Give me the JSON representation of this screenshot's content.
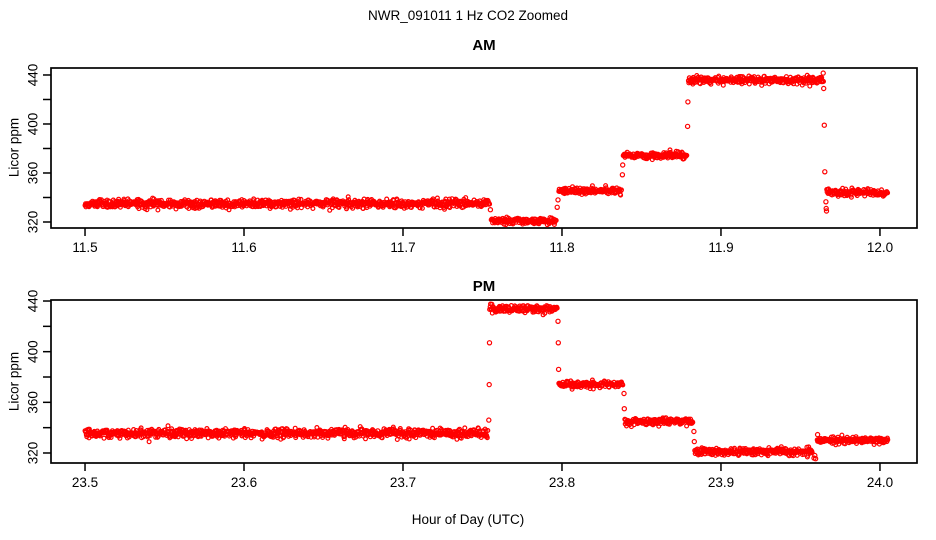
{
  "title": "NWR_091011  1 Hz CO2 Zoomed",
  "xlabel": "Hour of Day (UTC)",
  "colors": {
    "points": "#FF0000",
    "axis": "#000000",
    "background": "#FFFFFF"
  },
  "chart_data": [
    {
      "panel": "AM",
      "type": "scatter",
      "title": "AM",
      "ylabel": "Licor ppm",
      "marker": "open-circle",
      "sample_rate_hz": 1,
      "xlim": [
        11.4786,
        12.0233
      ],
      "ylim": [
        315.1,
        445.7
      ],
      "x_ticks": [
        {
          "v": 11.5,
          "l": "11.5"
        },
        {
          "v": 11.6,
          "l": "11.6"
        },
        {
          "v": 11.7,
          "l": "11.7"
        },
        {
          "v": 11.8,
          "l": "11.8"
        },
        {
          "v": 11.9,
          "l": "11.9"
        },
        {
          "v": 12.0,
          "l": "12.0"
        }
      ],
      "y_ticks": [
        {
          "v": 320,
          "l": "320"
        },
        {
          "v": 340,
          "l": ""
        },
        {
          "v": 360,
          "l": "360"
        },
        {
          "v": 380,
          "l": ""
        },
        {
          "v": 400,
          "l": "400"
        },
        {
          "v": 420,
          "l": ""
        },
        {
          "v": 440,
          "l": "440"
        }
      ],
      "segments": [
        {
          "from": 11.5,
          "to": 11.7545,
          "value": 335.0,
          "sd": 1.8
        },
        {
          "from": 11.7555,
          "to": 11.7965,
          "value": 320.8,
          "sd": 1.4
        },
        {
          "from": 11.798,
          "to": 11.8375,
          "value": 345.5,
          "sd": 1.4
        },
        {
          "from": 11.8385,
          "to": 11.8785,
          "value": 374.5,
          "sd": 1.4
        },
        {
          "from": 11.8795,
          "to": 11.9645,
          "value": 435.8,
          "sd": 1.5
        },
        {
          "from": 11.9665,
          "to": 12.005,
          "value": 344.0,
          "sd": 1.4
        }
      ],
      "transitions": [
        [
          11.755,
          330
        ],
        [
          11.797,
          332
        ],
        [
          11.7975,
          338
        ],
        [
          11.838,
          358.5
        ],
        [
          11.8382,
          366.5
        ],
        [
          11.879,
          398
        ],
        [
          11.8792,
          418
        ],
        [
          11.9643,
          441.5
        ],
        [
          11.9646,
          429
        ],
        [
          11.965,
          399
        ],
        [
          11.9653,
          361
        ],
        [
          11.966,
          336.5
        ],
        [
          11.9662,
          331
        ],
        [
          11.9664,
          329
        ]
      ]
    },
    {
      "panel": "PM",
      "type": "scatter",
      "title": "PM",
      "ylabel": "Licor ppm",
      "marker": "open-circle",
      "sample_rate_hz": 1,
      "xlim": [
        23.4786,
        24.0233
      ],
      "ylim": [
        312.1,
        440.8
      ],
      "x_ticks": [
        {
          "v": 23.5,
          "l": "23.5"
        },
        {
          "v": 23.6,
          "l": "23.6"
        },
        {
          "v": 23.7,
          "l": "23.7"
        },
        {
          "v": 23.8,
          "l": "23.8"
        },
        {
          "v": 23.9,
          "l": "23.9"
        },
        {
          "v": 24.0,
          "l": "24.0"
        }
      ],
      "y_ticks": [
        {
          "v": 320,
          "l": "320"
        },
        {
          "v": 340,
          "l": ""
        },
        {
          "v": 360,
          "l": "360"
        },
        {
          "v": 380,
          "l": ""
        },
        {
          "v": 400,
          "l": "400"
        },
        {
          "v": 420,
          "l": ""
        },
        {
          "v": 440,
          "l": "440"
        }
      ],
      "segments": [
        {
          "from": 23.5,
          "to": 23.7535,
          "value": 335.5,
          "sd": 1.8
        },
        {
          "from": 23.7545,
          "to": 23.797,
          "value": 434.0,
          "sd": 1.5
        },
        {
          "from": 23.798,
          "to": 23.8385,
          "value": 374.0,
          "sd": 1.4
        },
        {
          "from": 23.8395,
          "to": 23.8825,
          "value": 344.8,
          "sd": 1.4
        },
        {
          "from": 23.8835,
          "to": 23.9575,
          "value": 321.0,
          "sd": 1.4
        },
        {
          "from": 23.9605,
          "to": 24.005,
          "value": 330.0,
          "sd": 1.4
        }
      ],
      "transitions": [
        [
          23.754,
          346
        ],
        [
          23.7542,
          374
        ],
        [
          23.7544,
          407
        ],
        [
          23.7975,
          424
        ],
        [
          23.7977,
          407
        ],
        [
          23.7979,
          386
        ],
        [
          23.839,
          367
        ],
        [
          23.8392,
          355
        ],
        [
          23.883,
          337
        ],
        [
          23.8832,
          329
        ],
        [
          23.9585,
          316
        ],
        [
          23.959,
          318
        ],
        [
          23.9595,
          315.5
        ],
        [
          23.9608,
          334.5
        ]
      ]
    }
  ]
}
